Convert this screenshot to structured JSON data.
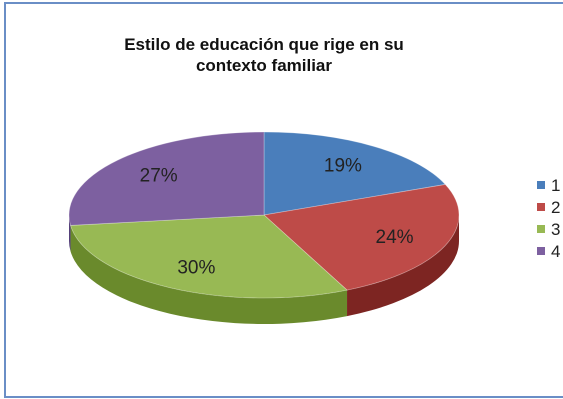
{
  "chart_data": {
    "type": "pie",
    "title": "Estilo de educación que rige en su contexto familiar",
    "title_lines": [
      "Estilo de educación que rige en su",
      "contexto familiar"
    ],
    "three_d": true,
    "legend_position": "right",
    "slices": [
      {
        "label": "1",
        "value": 19,
        "display": "19%",
        "color": "#4a7ebb",
        "side": "#2c5a8e"
      },
      {
        "label": "2",
        "value": 24,
        "display": "24%",
        "color": "#be4b48",
        "side": "#7d2522"
      },
      {
        "label": "3",
        "value": 30,
        "display": "30%",
        "color": "#98b954",
        "side": "#6a8a2c"
      },
      {
        "label": "4",
        "value": 27,
        "display": "27%",
        "color": "#7d60a0",
        "side": "#55407a"
      }
    ]
  }
}
